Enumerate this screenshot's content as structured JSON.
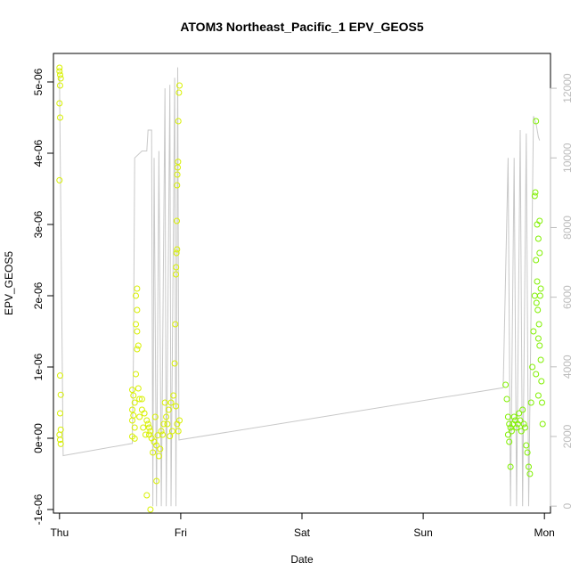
{
  "chart_data": {
    "type": "scatter",
    "title": "ATOM3 Northeast_Pacific_1 EPV_GEOS5",
    "xlabel": "Date",
    "ylabel": "EPV_GEOS5",
    "x_range_days": [
      -0.05,
      4.05
    ],
    "x_ticks": [
      {
        "label": "Thu",
        "value": 0
      },
      {
        "label": "Fri",
        "value": 1
      },
      {
        "label": "Sat",
        "value": 2
      },
      {
        "label": "Sun",
        "value": 3
      },
      {
        "label": "Mon",
        "value": 4
      }
    ],
    "y_left": {
      "range": [
        -1.05e-06,
        5.4e-06
      ],
      "ticks": [
        "-1e-06",
        "0e+00",
        "1e-06",
        "2e-06",
        "3e-06",
        "4e-06",
        "5e-06"
      ],
      "tick_values": [
        -1e-06,
        0,
        1e-06,
        2e-06,
        3e-06,
        4e-06,
        5e-06
      ]
    },
    "y_right": {
      "range": [
        -200,
        13000
      ],
      "ticks": [
        "0",
        "2000",
        "4000",
        "6000",
        "8000",
        "10000",
        "12000"
      ],
      "tick_values": [
        0,
        2000,
        4000,
        6000,
        8000,
        10000,
        12000
      ],
      "color": "#bcbcbc"
    },
    "altitude_line": {
      "color": "#c8c8c8",
      "points": [
        [
          0.0,
          12300
        ],
        [
          0.03,
          1450
        ],
        [
          0.6,
          1800
        ],
        [
          0.61,
          4300
        ],
        [
          0.62,
          10000
        ],
        [
          0.68,
          10200
        ],
        [
          0.72,
          10200
        ],
        [
          0.73,
          10800
        ],
        [
          0.76,
          10800
        ],
        [
          0.77,
          0
        ],
        [
          0.78,
          10000
        ],
        [
          0.8,
          0
        ],
        [
          0.82,
          10200
        ],
        [
          0.84,
          0
        ],
        [
          0.87,
          12000
        ],
        [
          0.88,
          0
        ],
        [
          0.91,
          12100
        ],
        [
          0.92,
          0
        ],
        [
          0.95,
          12300
        ],
        [
          0.96,
          0
        ],
        [
          0.975,
          12600
        ],
        [
          0.985,
          1900
        ],
        [
          3.66,
          3400
        ],
        [
          3.7,
          10000
        ],
        [
          3.72,
          0
        ],
        [
          3.75,
          10000
        ],
        [
          3.77,
          0
        ],
        [
          3.8,
          10800
        ],
        [
          3.82,
          0
        ],
        [
          3.85,
          10700
        ],
        [
          3.87,
          0
        ],
        [
          3.91,
          11200
        ],
        [
          3.93,
          11000
        ],
        [
          3.95,
          10600
        ],
        [
          3.96,
          10500
        ]
      ]
    },
    "series": [
      {
        "color_early": "#d8f000",
        "color_late": "#80f000",
        "points": [
          [
            0.0,
            5.2e-06
          ],
          [
            0.0,
            5.15e-06
          ],
          [
            0.005,
            5.1e-06
          ],
          [
            0.01,
            5.05e-06
          ],
          [
            0.005,
            4.95e-06
          ],
          [
            0.0,
            4.7e-06
          ],
          [
            0.005,
            4.5e-06
          ],
          [
            0.0,
            3.62e-06
          ],
          [
            0.005,
            8.8e-07
          ],
          [
            0.01,
            6.1e-07
          ],
          [
            0.005,
            3.5e-07
          ],
          [
            0.01,
            1.2e-07
          ],
          [
            0.0,
            5e-08
          ],
          [
            0.005,
            -2e-08
          ],
          [
            0.01,
            -8e-08
          ],
          [
            0.6,
            6.8e-07
          ],
          [
            0.61,
            6e-07
          ],
          [
            0.62,
            5e-07
          ],
          [
            0.6,
            4e-07
          ],
          [
            0.61,
            3.2e-07
          ],
          [
            0.6,
            2.5e-07
          ],
          [
            0.62,
            1.5e-07
          ],
          [
            0.6,
            2.5e-08
          ],
          [
            0.62,
            -5e-09
          ],
          [
            0.64,
            2.1e-06
          ],
          [
            0.63,
            2e-06
          ],
          [
            0.64,
            1.8e-06
          ],
          [
            0.63,
            1.6e-06
          ],
          [
            0.64,
            1.5e-06
          ],
          [
            0.65,
            1.3e-06
          ],
          [
            0.64,
            1.25e-06
          ],
          [
            0.63,
            9e-07
          ],
          [
            0.65,
            7e-07
          ],
          [
            0.66,
            5.5e-07
          ],
          [
            0.68,
            4e-07
          ],
          [
            0.7,
            3.5e-07
          ],
          [
            0.72,
            2.5e-07
          ],
          [
            0.73,
            2e-07
          ],
          [
            0.75,
            1e-07
          ],
          [
            0.74,
            5e-08
          ],
          [
            0.76,
            0
          ],
          [
            0.78,
            -5e-08
          ],
          [
            0.8,
            -1e-07
          ],
          [
            0.77,
            -2e-07
          ],
          [
            0.72,
            -8e-07
          ],
          [
            0.75,
            -1e-06
          ],
          [
            0.8,
            -6e-07
          ],
          [
            0.82,
            -2.5e-07
          ],
          [
            0.84,
            1e-07
          ],
          [
            0.86,
            2e-07
          ],
          [
            0.88,
            3e-07
          ],
          [
            0.9,
            4e-07
          ],
          [
            0.92,
            5e-07
          ],
          [
            0.94,
            6e-07
          ],
          [
            0.96,
            4.5e-07
          ],
          [
            0.97,
            2e-07
          ],
          [
            0.98,
            1e-07
          ],
          [
            0.99,
            2.5e-07
          ],
          [
            0.95,
            1.05e-06
          ],
          [
            0.955,
            1.6e-06
          ],
          [
            0.96,
            2.3e-06
          ],
          [
            0.962,
            2.4e-06
          ],
          [
            0.965,
            2.6e-06
          ],
          [
            0.97,
            2.65e-06
          ],
          [
            0.968,
            3.05e-06
          ],
          [
            0.97,
            3.55e-06
          ],
          [
            0.972,
            3.7e-06
          ],
          [
            0.975,
            3.8e-06
          ],
          [
            0.978,
            3.88e-06
          ],
          [
            0.98,
            4.45e-06
          ],
          [
            0.985,
            4.85e-06
          ],
          [
            0.99,
            4.95e-06
          ],
          [
            0.87,
            5e-07
          ],
          [
            0.68,
            5.5e-07
          ],
          [
            0.66,
            3e-07
          ],
          [
            0.69,
            1.5e-07
          ],
          [
            0.71,
            5e-08
          ],
          [
            0.74,
            1.5e-07
          ],
          [
            0.79,
            3e-07
          ],
          [
            0.81,
            4e-08
          ],
          [
            0.83,
            -1.5e-07
          ],
          [
            0.85,
            5e-08
          ],
          [
            0.89,
            2e-07
          ],
          [
            0.91,
            3e-08
          ],
          [
            0.93,
            1e-07
          ],
          [
            3.68,
            7.5e-07
          ],
          [
            3.69,
            5.5e-07
          ],
          [
            3.7,
            3e-07
          ],
          [
            3.71,
            2e-07
          ],
          [
            3.72,
            1.5e-07
          ],
          [
            3.7,
            5e-08
          ],
          [
            3.71,
            -5e-08
          ],
          [
            3.72,
            -4e-07
          ],
          [
            3.73,
            1e-07
          ],
          [
            3.74,
            2e-07
          ],
          [
            3.75,
            3e-07
          ],
          [
            3.76,
            2.5e-07
          ],
          [
            3.77,
            1.5e-07
          ],
          [
            3.78,
            2e-07
          ],
          [
            3.79,
            3.5e-07
          ],
          [
            3.8,
            2.5e-07
          ],
          [
            3.81,
            1e-07
          ],
          [
            3.82,
            4e-07
          ],
          [
            3.83,
            2e-07
          ],
          [
            3.84,
            1.5e-07
          ],
          [
            3.85,
            -1e-07
          ],
          [
            3.86,
            -2e-07
          ],
          [
            3.87,
            -4e-07
          ],
          [
            3.88,
            -5e-07
          ],
          [
            3.89,
            5e-07
          ],
          [
            3.9,
            1e-06
          ],
          [
            3.91,
            1.5e-06
          ],
          [
            3.92,
            2e-06
          ],
          [
            3.93,
            2.5e-06
          ],
          [
            3.94,
            3e-06
          ],
          [
            3.95,
            2.8e-06
          ],
          [
            3.96,
            3.05e-06
          ],
          [
            3.945,
            1.8e-06
          ],
          [
            3.955,
            1.6e-06
          ],
          [
            3.96,
            1.3e-06
          ],
          [
            3.965,
            2e-06
          ],
          [
            3.97,
            1.1e-06
          ],
          [
            3.975,
            8e-07
          ],
          [
            3.98,
            5e-07
          ],
          [
            3.985,
            2e-07
          ],
          [
            3.93,
            4.45e-06
          ],
          [
            3.925,
            3.45e-06
          ],
          [
            3.92,
            3.4e-06
          ],
          [
            3.94,
            2.2e-06
          ],
          [
            3.935,
            1.9e-06
          ],
          [
            3.95,
            1.4e-06
          ],
          [
            3.96,
            2.6e-06
          ],
          [
            3.97,
            2.1e-06
          ],
          [
            3.93,
            9e-07
          ],
          [
            3.95,
            6e-07
          ]
        ]
      }
    ]
  }
}
